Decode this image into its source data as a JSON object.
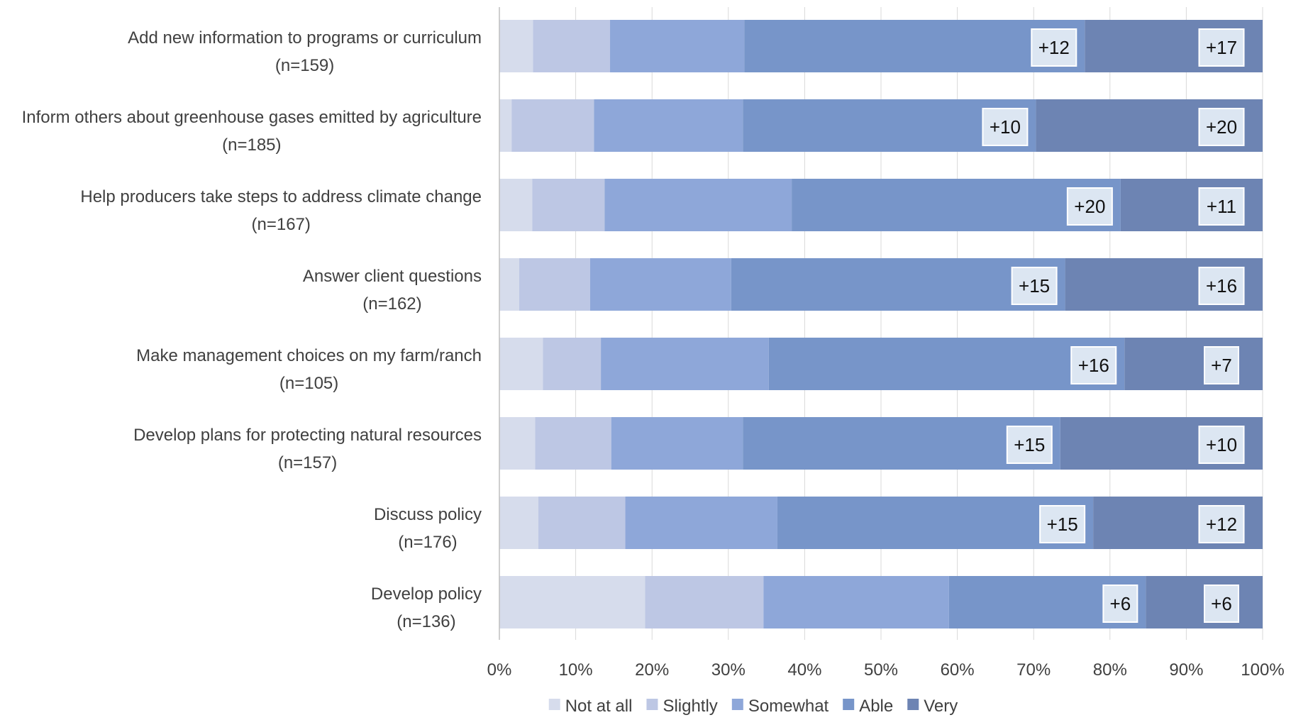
{
  "chart_data": {
    "type": "bar",
    "orientation": "horizontal",
    "stacked": "percent",
    "categories": [
      {
        "label": "Add new information to programs or curriculum",
        "n": "(n=159)"
      },
      {
        "label": "Inform others about greenhouse gases emitted by agriculture",
        "n": "(n=185)"
      },
      {
        "label": "Help producers take steps to address climate change",
        "n": "(n=167)"
      },
      {
        "label": "Answer client questions",
        "n": "(n=162)"
      },
      {
        "label": "Make management choices on my farm/ranch",
        "n": "(n=105)"
      },
      {
        "label": "Develop plans for protecting natural resources",
        "n": "(n=157)"
      },
      {
        "label": "Discuss policy",
        "n": "(n=176)"
      },
      {
        "label": "Develop policy",
        "n": "(n=136)"
      }
    ],
    "series": [
      {
        "name": "Not at all",
        "color": "#D6DCEC",
        "values": [
          4.4,
          1.6,
          4.3,
          2.6,
          5.7,
          4.5,
          5.1,
          19.1
        ]
      },
      {
        "name": "Slightly",
        "color": "#BDC7E4",
        "values": [
          10.1,
          10.8,
          9.5,
          9.3,
          7.6,
          9.6,
          11.4,
          15.5
        ]
      },
      {
        "name": "Somewhat",
        "color": "#8EA7D9",
        "values": [
          17.6,
          19.5,
          24.5,
          18.5,
          22.0,
          16.6,
          19.9,
          24.3
        ]
      },
      {
        "name": "Able",
        "color": "#7795C9",
        "values": [
          44.6,
          38.4,
          43.1,
          43.8,
          46.6,
          40.0,
          41.4,
          25.8
        ]
      },
      {
        "name": "Very",
        "color": "#6D84B3",
        "values": [
          23.3,
          29.7,
          18.6,
          25.9,
          18.1,
          25.5,
          22.2,
          15.3
        ]
      }
    ],
    "annotations": {
      "able_change": [
        "+12",
        "+10",
        "+20",
        "+15",
        "+16",
        "+15",
        "+15",
        "+6"
      ],
      "very_change": [
        "+17",
        "+20",
        "+11",
        "+16",
        "+7",
        "+10",
        "+12",
        "+6"
      ]
    },
    "xaxis": {
      "ticks": [
        "0%",
        "10%",
        "20%",
        "30%",
        "40%",
        "50%",
        "60%",
        "70%",
        "80%",
        "90%",
        "100%"
      ],
      "range": [
        0,
        100
      ]
    },
    "grid": true,
    "legend_position": "bottom"
  }
}
